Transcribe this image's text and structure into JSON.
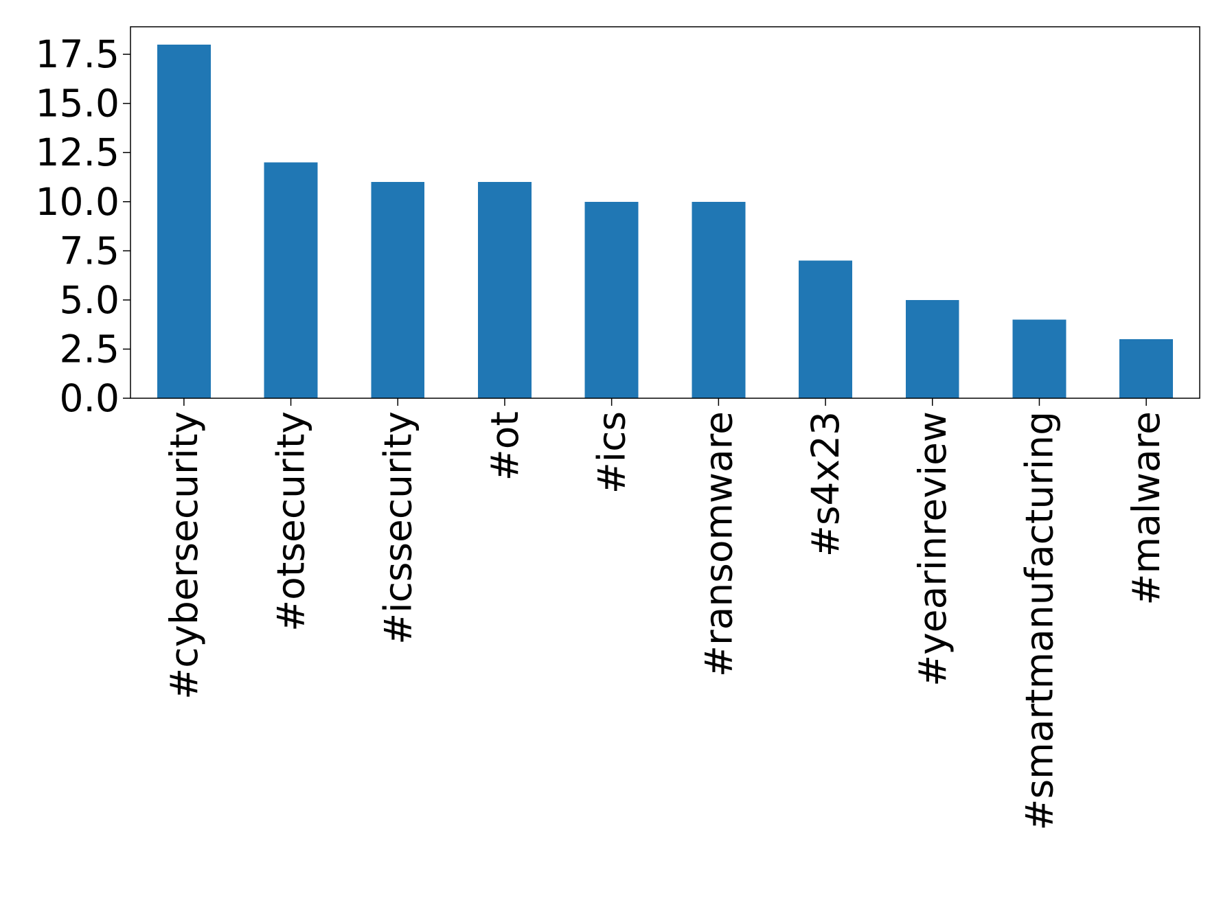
{
  "chart_data": {
    "type": "bar",
    "title": "",
    "xlabel": "",
    "ylabel": "",
    "categories": [
      "#cybersecurity",
      "#otsecurity",
      "#icssecurity",
      "#ot",
      "#ics",
      "#ransomware",
      "#s4x23",
      "#yearinreview",
      "#smartmanufacturing",
      "#malware"
    ],
    "values": [
      18,
      12,
      11,
      11,
      10,
      10,
      7,
      5,
      4,
      3
    ],
    "ylim": [
      0,
      18.9
    ],
    "yticks": [
      "0.0",
      "2.5",
      "5.0",
      "7.5",
      "10.0",
      "12.5",
      "15.0",
      "17.5"
    ],
    "ytick_values": [
      0,
      2.5,
      5,
      7.5,
      10,
      12.5,
      15,
      17.5
    ],
    "grid": false,
    "legend": "none",
    "bar_color": "#2077b4"
  }
}
